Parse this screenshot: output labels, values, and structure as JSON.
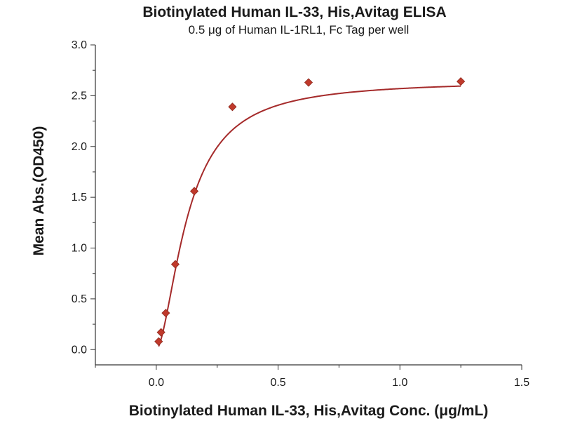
{
  "chart_data": {
    "type": "scatter",
    "title": "Biotinylated Human IL-33, His,Avitag ELISA",
    "subtitle": "0.5 μg of Human IL-1RL1, Fc Tag per well",
    "xlabel": "Biotinylated Human IL-33, His,Avitag Conc. (μg/mL)",
    "ylabel": "Mean Abs.(OD450)",
    "xlim": [
      -0.25,
      1.5
    ],
    "ylim": [
      -0.15,
      3.0
    ],
    "xticks": [
      0.0,
      0.5,
      1.0,
      1.5
    ],
    "xtick_labels": [
      "0.0",
      "0.5",
      "1.0",
      "1.5"
    ],
    "yticks": [
      0.0,
      0.5,
      1.0,
      1.5,
      2.0,
      2.5,
      3.0
    ],
    "ytick_labels": [
      "0.0",
      "0.5",
      "1.0",
      "1.5",
      "2.0",
      "2.5",
      "3.0"
    ],
    "grid": false,
    "series": [
      {
        "marker": "diamond",
        "color": "#c0392b",
        "x": [
          0.0098,
          0.0195,
          0.039,
          0.078,
          0.156,
          0.3125,
          0.625,
          1.25
        ],
        "y": [
          0.08,
          0.17,
          0.36,
          0.84,
          1.56,
          2.39,
          2.63,
          2.64
        ]
      }
    ],
    "fit_curve": {
      "color": "#a52a2a",
      "bottom": 0.0,
      "top": 2.65,
      "ec50": 0.13,
      "hill": 1.7
    }
  }
}
